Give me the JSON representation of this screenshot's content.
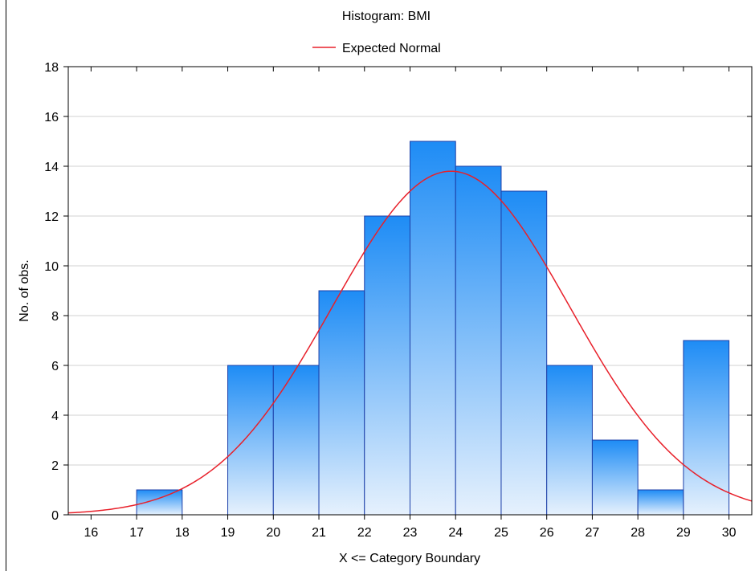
{
  "chart_data": {
    "type": "bar",
    "title": "Histogram: BMI",
    "xlabel": "X <= Category Boundary",
    "ylabel": "No. of obs.",
    "ylim": [
      0,
      18
    ],
    "yticks": [
      0,
      2,
      4,
      6,
      8,
      10,
      12,
      14,
      16,
      18
    ],
    "xlim": [
      15.5,
      30.5
    ],
    "xticks": [
      16,
      17,
      18,
      19,
      20,
      21,
      22,
      23,
      24,
      25,
      26,
      27,
      28,
      29,
      30
    ],
    "bins": [
      {
        "from": 17,
        "to": 18,
        "count": 1
      },
      {
        "from": 19,
        "to": 20,
        "count": 6
      },
      {
        "from": 20,
        "to": 21,
        "count": 6
      },
      {
        "from": 21,
        "to": 22,
        "count": 9
      },
      {
        "from": 22,
        "to": 23,
        "count": 12
      },
      {
        "from": 23,
        "to": 24,
        "count": 15
      },
      {
        "from": 24,
        "to": 25,
        "count": 14
      },
      {
        "from": 25,
        "to": 26,
        "count": 13
      },
      {
        "from": 26,
        "to": 27,
        "count": 6
      },
      {
        "from": 27,
        "to": 28,
        "count": 3
      },
      {
        "from": 28,
        "to": 29,
        "count": 1
      },
      {
        "from": 29,
        "to": 30,
        "count": 7
      }
    ],
    "expected_normal": {
      "name": "Expected Normal",
      "peak_x": 23.9,
      "peak_y": 13.8,
      "sigma": 2.6
    },
    "legend": {
      "position": "top-center",
      "entries": [
        "Expected Normal"
      ]
    },
    "grid": "horizontal",
    "colors": {
      "bar_fill_top": "#1e8cf5",
      "bar_fill_bottom": "#e6f1fd",
      "bar_stroke": "#1c3fa8",
      "curve": "#e8202a",
      "grid": "#d2d2d2",
      "axis": "#000000"
    }
  }
}
